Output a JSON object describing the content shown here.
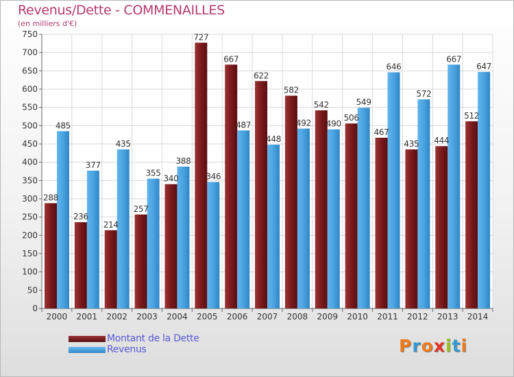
{
  "title": "Revenus/Dette - COMMENAILLES",
  "subtitle": "(en milliers d'€)",
  "legend": {
    "debt": "Montant de la Dette",
    "revenue": "Revenus"
  },
  "logo": {
    "text": "Proxiti",
    "letters": [
      "P",
      "r",
      "o",
      "x",
      "i",
      "t",
      "i"
    ],
    "colors": [
      "#f07a1b",
      "#3399cc",
      "#f07a1b",
      "#e63324",
      "#99c21c",
      "#3399cc",
      "#f07a1b"
    ]
  },
  "colors": {
    "debt": "#7a1a1c",
    "revenue": "#4aa3e0",
    "title": "#b5396e"
  },
  "chart_data": {
    "type": "bar",
    "categories": [
      "2000",
      "2001",
      "2002",
      "2003",
      "2004",
      "2005",
      "2006",
      "2007",
      "2008",
      "2009",
      "2010",
      "2011",
      "2012",
      "2013",
      "2014"
    ],
    "series": [
      {
        "name": "Montant de la Dette",
        "values": [
          288,
          236,
          214,
          257,
          340,
          727,
          667,
          622,
          582,
          542,
          506,
          467,
          435,
          444,
          512
        ]
      },
      {
        "name": "Revenus",
        "values": [
          485,
          377,
          435,
          355,
          388,
          346,
          487,
          448,
          492,
          490,
          549,
          646,
          572,
          667,
          647
        ]
      }
    ],
    "ylim": [
      0,
      750
    ],
    "yticks": [
      0,
      50,
      100,
      150,
      200,
      250,
      300,
      350,
      400,
      450,
      500,
      550,
      600,
      650,
      700,
      750
    ],
    "grid": true,
    "legend_position": "bottom-left"
  }
}
